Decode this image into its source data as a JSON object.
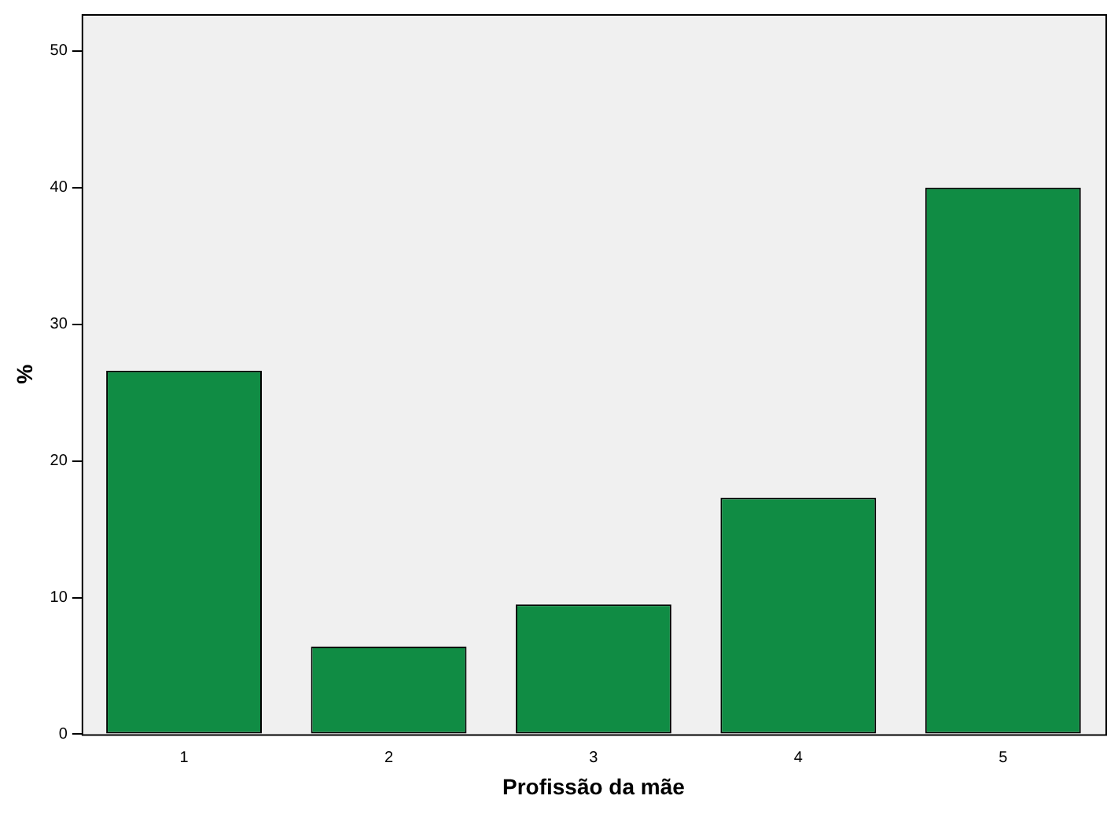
{
  "chart_data": {
    "type": "bar",
    "xlabel": "Profissão da mãe",
    "ylabel": "%",
    "categories": [
      "1",
      "2",
      "3",
      "4",
      "5"
    ],
    "values": [
      26.6,
      6.4,
      9.5,
      17.3,
      40.0
    ],
    "color": "#108c44",
    "ylim": [
      0,
      52.7
    ],
    "yticks": [
      0,
      10,
      20,
      30,
      40,
      50
    ],
    "grid": false,
    "legend": false
  }
}
